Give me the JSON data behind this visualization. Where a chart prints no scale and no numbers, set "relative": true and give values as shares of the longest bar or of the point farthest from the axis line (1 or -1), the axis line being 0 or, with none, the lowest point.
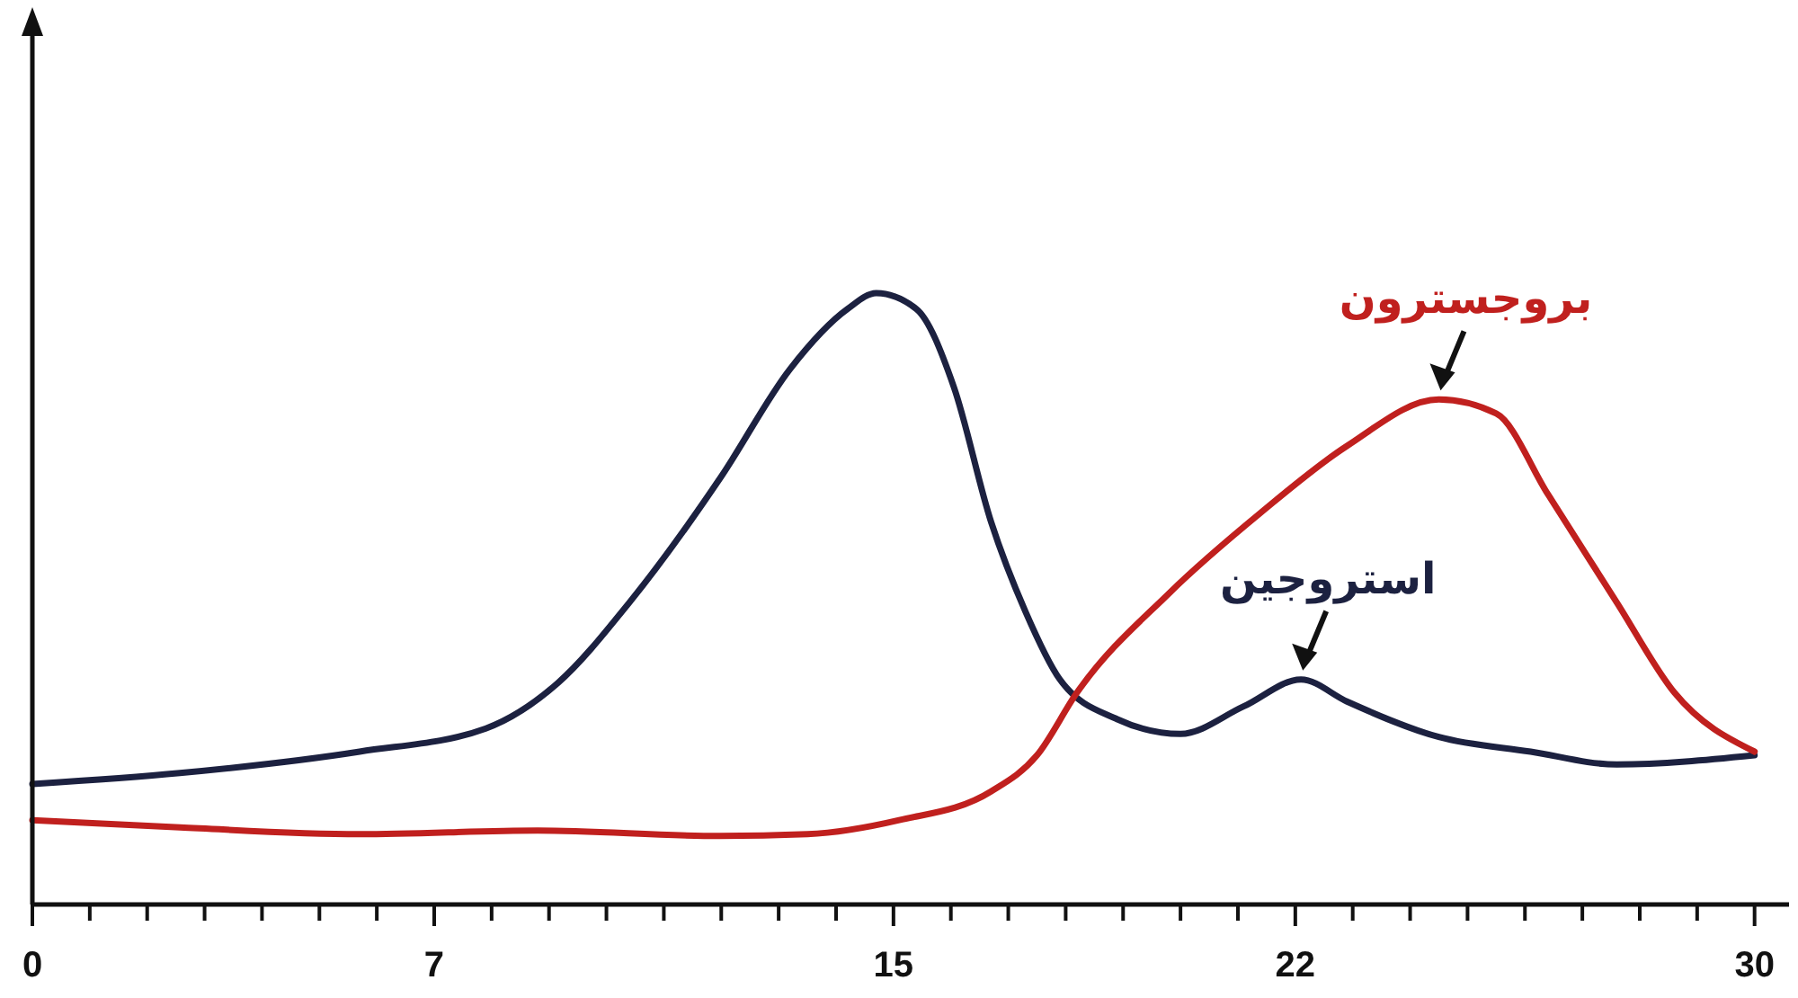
{
  "chart_data": {
    "type": "line",
    "relative": true,
    "xlim": [
      0,
      30.6
    ],
    "xticks": [
      0,
      {
        "value": 1,
        "label": null
      },
      {
        "value": 2,
        "label": null
      },
      {
        "value": 3,
        "label": null
      },
      {
        "value": 4,
        "label": null
      },
      {
        "value": 5,
        "label": null
      },
      {
        "value": 6,
        "label": null
      },
      7,
      {
        "value": 8,
        "label": null
      },
      {
        "value": 9,
        "label": null
      },
      {
        "value": 10,
        "label": null
      },
      {
        "value": 11,
        "label": null
      },
      {
        "value": 12,
        "label": null
      },
      {
        "value": 13,
        "label": null
      },
      {
        "value": 14,
        "label": null
      },
      15,
      {
        "value": 16,
        "label": null
      },
      {
        "value": 17,
        "label": null
      },
      {
        "value": 18,
        "label": null
      },
      {
        "value": 19,
        "label": null
      },
      {
        "value": 20,
        "label": null
      },
      {
        "value": 21,
        "label": null
      },
      22,
      {
        "value": 23,
        "label": null
      },
      {
        "value": 24,
        "label": null
      },
      {
        "value": 25,
        "label": null
      },
      {
        "value": 26,
        "label": null
      },
      {
        "value": 27,
        "label": null
      },
      {
        "value": 28,
        "label": null
      },
      {
        "value": 29,
        "label": null
      },
      30
    ],
    "legend": false,
    "marker": "none",
    "line_style": "solid",
    "grid": false,
    "series": [
      {
        "name": "استروجين",
        "color": "#1c2140",
        "x": [
          0,
          2.57,
          5.7,
          7.9,
          9.15,
          10.4,
          12.0,
          13.2,
          14.2,
          14.7,
          15.4,
          16.05,
          16.7,
          17.3,
          17.9,
          18.9,
          20.0,
          21.1,
          22.1,
          22.9,
          24.5,
          26.1,
          27.6,
          30
        ],
        "values": [
          0.197,
          0.215,
          0.25,
          0.288,
          0.362,
          0.494,
          0.7,
          0.876,
          0.974,
          1.0,
          0.974,
          0.847,
          0.626,
          0.479,
          0.368,
          0.303,
          0.279,
          0.324,
          0.368,
          0.332,
          0.274,
          0.25,
          0.229,
          0.244
        ]
      },
      {
        "name": "بروجسترون",
        "color": "#c0201e",
        "x": [
          0,
          2.57,
          5.7,
          8.8,
          11.97,
          13.5,
          15.1,
          16.7,
          17.5,
          18.2,
          19.8,
          21.4,
          22.9,
          24.5,
          25.5,
          26.4,
          27.6,
          28.6,
          30
        ],
        "values": [
          0.138,
          0.126,
          0.115,
          0.121,
          0.112,
          0.115,
          0.138,
          0.185,
          0.244,
          0.347,
          0.509,
          0.641,
          0.75,
          0.826,
          0.803,
          0.671,
          0.494,
          0.347,
          0.25
        ]
      }
    ]
  }
}
